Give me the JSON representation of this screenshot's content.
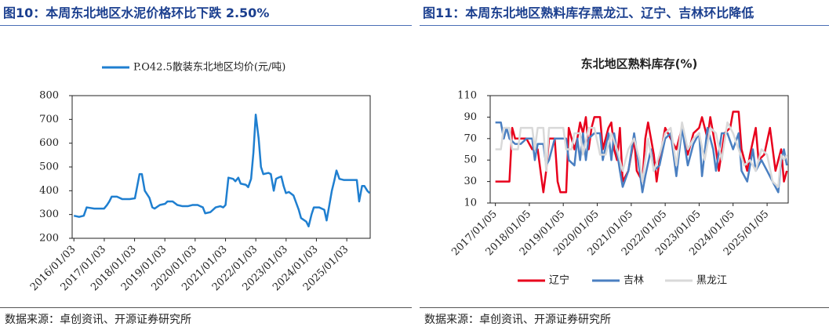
{
  "chart_data": [
    {
      "type": "line",
      "heading": "图10：本周东北地区水泥价格环比下跌 2.50%",
      "source": "数据来源：卓创资讯、开源证券研究所",
      "x": [
        "2016/01/03",
        "2016/03/06",
        "2016/05/01",
        "2016/06/05",
        "2016/09/04",
        "2016/11/06",
        "2017/01/01",
        "2017/02/05",
        "2017/03/05",
        "2017/04/02",
        "2017/06/04",
        "2017/08/06",
        "2017/11/05",
        "2018/01/07",
        "2018/03/04",
        "2018/04/01",
        "2018/05/06",
        "2018/07/01",
        "2018/08/05",
        "2018/09/02",
        "2018/11/04",
        "2019/01/06",
        "2019/02/03",
        "2019/04/07",
        "2019/06/02",
        "2019/08/04",
        "2019/10/06",
        "2019/12/01",
        "2020/02/02",
        "2020/04/05",
        "2020/05/03",
        "2020/07/05",
        "2020/09/06",
        "2020/11/01",
        "2020/12/06",
        "2021/01/03",
        "2021/02/07",
        "2021/04/04",
        "2021/05/02",
        "2021/06/06",
        "2021/07/04",
        "2021/09/05",
        "2021/10/03",
        "2021/11/07",
        "2021/12/05",
        "2022/01/02",
        "2022/02/06",
        "2022/03/06",
        "2022/04/03",
        "2022/06/05",
        "2022/07/03",
        "2022/08/07",
        "2022/09/04",
        "2022/10/02",
        "2022/11/06",
        "2022/12/04",
        "2023/01/01",
        "2023/02/05",
        "2023/04/02",
        "2023/06/04",
        "2023/07/02",
        "2023/09/03",
        "2023/10/01",
        "2023/11/05",
        "2023/12/03",
        "2024/02/04",
        "2024/04/07",
        "2024/05/05",
        "2024/06/02",
        "2024/07/07",
        "2024/08/04",
        "2024/09/01",
        "2024/10/06",
        "2024/12/01",
        "2025/03/02",
        "2025/05/04",
        "2025/06/01",
        "2025/07/06",
        "2025/08/03",
        "2025/09/07",
        "2025/10/05"
      ],
      "series": [
        {
          "name": "P.O42.5散装东北地区均价(元/吨)",
          "color": "#1f7fd0",
          "values": [
            295,
            290,
            295,
            330,
            325,
            325,
            325,
            340,
            355,
            375,
            375,
            365,
            365,
            368,
            470,
            470,
            400,
            370,
            330,
            325,
            340,
            345,
            355,
            355,
            340,
            335,
            335,
            340,
            340,
            330,
            305,
            310,
            330,
            335,
            330,
            340,
            455,
            450,
            440,
            455,
            430,
            425,
            415,
            450,
            560,
            720,
            620,
            500,
            470,
            475,
            470,
            400,
            450,
            455,
            460,
            420,
            390,
            395,
            380,
            320,
            285,
            270,
            250,
            300,
            330,
            330,
            320,
            275,
            330,
            400,
            440,
            485,
            450,
            445,
            445,
            445,
            355,
            420,
            420,
            400,
            390
          ]
        }
      ],
      "xlim": [
        "2015/12/13",
        "2025/10/12"
      ],
      "xticks": [
        "2016/01/03",
        "2017/01/03",
        "2018/01/03",
        "2019/01/03",
        "2020/01/03",
        "2021/01/03",
        "2022/01/03",
        "2023/01/03",
        "2024/01/03",
        "2025/01/03"
      ],
      "ylim": [
        200,
        800
      ],
      "yticks": [
        200,
        300,
        400,
        500,
        600,
        700,
        800
      ],
      "legend": "top"
    },
    {
      "type": "line",
      "heading": "图11：本周东北地区熟料库存黑龙江、辽宁、吉林环比降低",
      "title": "东北地区熟料库存(%)",
      "source": "数据来源：卓创资讯、开源证券研究所",
      "series": [
        {
          "name": "辽宁",
          "color": "#e8001c",
          "x": [
            "2017/01/05",
            "2017/06/05",
            "2017/07/05",
            "2017/08/05",
            "2017/10/05",
            "2017/12/05",
            "2018/02/05",
            "2018/04/05",
            "2018/05/05",
            "2018/06/05",
            "2018/07/05",
            "2018/08/05",
            "2018/10/05",
            "2018/11/05",
            "2018/12/05",
            "2019/02/05",
            "2019/03/05",
            "2019/05/05",
            "2019/06/05",
            "2019/07/05",
            "2019/08/05",
            "2019/09/05",
            "2019/10/05",
            "2019/11/05",
            "2019/12/05",
            "2020/02/05",
            "2020/03/05",
            "2020/05/05",
            "2020/06/05",
            "2020/07/05",
            "2020/08/05",
            "2020/09/05",
            "2020/10/05",
            "2020/12/05",
            "2021/02/05",
            "2021/03/05",
            "2021/05/05",
            "2021/06/05",
            "2021/07/05",
            "2021/09/05",
            "2021/10/05",
            "2021/11/05",
            "2022/01/05",
            "2022/03/05",
            "2022/05/05",
            "2022/07/05",
            "2022/09/05",
            "2022/11/05",
            "2023/01/05",
            "2023/02/05",
            "2023/04/05",
            "2023/05/05",
            "2023/07/05",
            "2023/08/05",
            "2023/10/05",
            "2023/12/05",
            "2024/01/05",
            "2024/03/05",
            "2024/04/05",
            "2024/06/05",
            "2024/07/05",
            "2024/09/05",
            "2024/10/05",
            "2024/12/05",
            "2025/02/05",
            "2025/04/05",
            "2025/06/05",
            "2025/07/05",
            "2025/08/05"
          ],
          "values": [
            30,
            30,
            80,
            70,
            70,
            70,
            60,
            60,
            40,
            20,
            40,
            70,
            70,
            30,
            20,
            20,
            80,
            60,
            70,
            85,
            75,
            90,
            60,
            80,
            90,
            90,
            60,
            80,
            85,
            60,
            50,
            80,
            30,
            40,
            70,
            40,
            30,
            70,
            85,
            55,
            30,
            50,
            80,
            70,
            60,
            80,
            55,
            75,
            80,
            90,
            70,
            90,
            60,
            40,
            75,
            80,
            95,
            95,
            60,
            40,
            55,
            80,
            50,
            55,
            80,
            40,
            60,
            30,
            40
          ]
        },
        {
          "name": "吉林",
          "color": "#4a7fc1",
          "x": [
            "2017/01/05",
            "2017/03/05",
            "2017/04/05",
            "2017/05/05",
            "2017/06/05",
            "2017/08/05",
            "2017/10/05",
            "2017/12/05",
            "2018/02/05",
            "2018/03/05",
            "2018/04/05",
            "2018/06/05",
            "2018/07/05",
            "2018/08/05",
            "2018/10/05",
            "2018/12/05",
            "2019/02/05",
            "2019/03/05",
            "2019/05/05",
            "2019/06/05",
            "2019/07/05",
            "2019/08/05",
            "2019/09/05",
            "2019/10/05",
            "2019/12/05",
            "2020/02/05",
            "2020/03/05",
            "2020/05/05",
            "2020/06/05",
            "2020/07/05",
            "2020/09/05",
            "2020/10/05",
            "2020/12/05",
            "2021/02/05",
            "2021/04/05",
            "2021/05/05",
            "2021/06/05",
            "2021/08/05",
            "2021/09/05",
            "2021/11/05",
            "2022/01/05",
            "2022/03/05",
            "2022/05/05",
            "2022/07/05",
            "2022/09/05",
            "2022/11/05",
            "2023/01/05",
            "2023/02/05",
            "2023/04/05",
            "2023/06/05",
            "2023/07/05",
            "2023/09/05",
            "2023/11/05",
            "2024/01/05",
            "2024/03/05",
            "2024/04/05",
            "2024/06/05",
            "2024/08/05",
            "2024/09/05",
            "2024/11/05",
            "2025/01/05",
            "2025/03/05",
            "2025/05/05",
            "2025/06/05",
            "2025/07/05",
            "2025/08/05"
          ],
          "values": [
            85,
            85,
            70,
            80,
            70,
            65,
            65,
            70,
            70,
            50,
            65,
            65,
            45,
            50,
            70,
            70,
            70,
            50,
            45,
            70,
            50,
            75,
            50,
            70,
            75,
            75,
            50,
            75,
            50,
            75,
            40,
            25,
            40,
            75,
            40,
            20,
            35,
            60,
            40,
            45,
            70,
            75,
            35,
            80,
            45,
            65,
            75,
            35,
            80,
            60,
            40,
            75,
            75,
            60,
            75,
            40,
            30,
            60,
            40,
            50,
            40,
            30,
            20,
            50,
            60,
            45
          ]
        },
        {
          "name": "黑龙江",
          "color": "#d9d9d9",
          "x": [
            "2017/01/05",
            "2017/03/05",
            "2017/04/05",
            "2017/06/05",
            "2017/07/05",
            "2017/09/05",
            "2017/10/05",
            "2017/12/05",
            "2018/02/05",
            "2018/03/05",
            "2018/04/05",
            "2018/06/05",
            "2018/07/05",
            "2018/08/05",
            "2018/11/05",
            "2019/01/05",
            "2019/02/05",
            "2019/04/05",
            "2019/05/05",
            "2019/07/05",
            "2019/08/05",
            "2019/10/05",
            "2019/12/05",
            "2020/02/05",
            "2020/04/05",
            "2020/06/05",
            "2020/08/05",
            "2020/10/05",
            "2020/12/05",
            "2021/02/05",
            "2021/04/05",
            "2021/05/05",
            "2021/07/05",
            "2021/09/05",
            "2021/11/05",
            "2022/01/05",
            "2022/03/05",
            "2022/05/05",
            "2022/07/05",
            "2022/09/05",
            "2022/11/05",
            "2023/01/05",
            "2023/03/05",
            "2023/05/05",
            "2023/07/05",
            "2023/09/05",
            "2023/11/05",
            "2024/01/05",
            "2024/03/05",
            "2024/05/05",
            "2024/07/05",
            "2024/09/05",
            "2024/11/05",
            "2025/01/05",
            "2025/03/05",
            "2025/05/05",
            "2025/06/05",
            "2025/07/05",
            "2025/08/05"
          ],
          "values": [
            60,
            60,
            80,
            80,
            60,
            60,
            80,
            80,
            80,
            60,
            80,
            80,
            40,
            80,
            80,
            80,
            60,
            60,
            75,
            75,
            55,
            80,
            80,
            55,
            55,
            75,
            60,
            40,
            60,
            70,
            50,
            30,
            70,
            40,
            55,
            75,
            80,
            45,
            85,
            60,
            70,
            75,
            50,
            80,
            75,
            50,
            85,
            75,
            60,
            45,
            50,
            40,
            60,
            55,
            30,
            25,
            55,
            50,
            55
          ]
        }
      ],
      "xlim": [
        "2016/11/10",
        "2025/08/20"
      ],
      "xticks": [
        "2017/01/05",
        "2018/01/05",
        "2019/01/05",
        "2020/01/05",
        "2021/01/05",
        "2022/01/05",
        "2023/01/05",
        "2024/01/05",
        "2025/01/05"
      ],
      "ylim": [
        10,
        110
      ],
      "yticks": [
        10,
        30,
        50,
        70,
        90,
        110
      ],
      "legend": "bottom"
    }
  ]
}
